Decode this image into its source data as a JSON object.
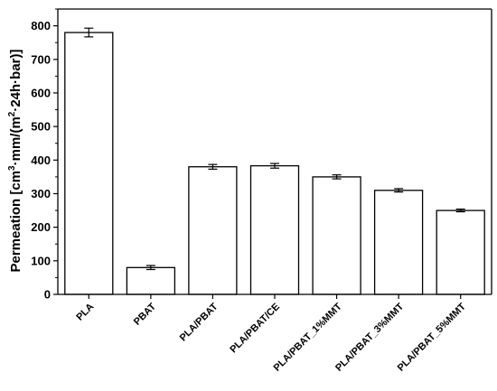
{
  "chart_data": {
    "type": "bar",
    "title": "",
    "xlabel": "",
    "ylabel": {
      "parts": [
        {
          "text": "Permeation [cm",
          "sup": false
        },
        {
          "text": "3",
          "sup": true
        },
        {
          "text": "·mm/(m",
          "sup": false
        },
        {
          "text": "2",
          "sup": true
        },
        {
          "text": "·24h·bar)]",
          "sup": false
        }
      ]
    },
    "categories": [
      "PLA",
      "PBAT",
      "PLA/PBAT",
      "PLA/PBAT/CE",
      "PLA/PBAT_1%MMT",
      "PLA/PBAT_3%MMT",
      "PLA/PBAT_5%MMT"
    ],
    "values": [
      780,
      80,
      380,
      383,
      350,
      310,
      250
    ],
    "errors": [
      13,
      6,
      7,
      7,
      6,
      5,
      4
    ],
    "ylim": [
      0,
      850
    ],
    "yticks": [
      0,
      100,
      200,
      300,
      400,
      500,
      600,
      700,
      800
    ],
    "grid": false,
    "legend": "none",
    "colors": {
      "bar_fill": "#ffffff",
      "bar_stroke": "#000000",
      "axis": "#000000"
    }
  }
}
